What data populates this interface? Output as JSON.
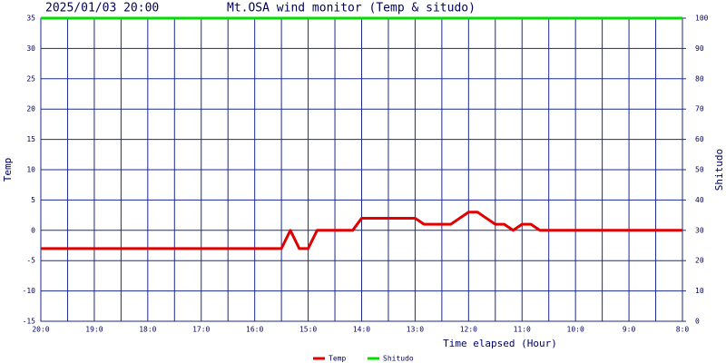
{
  "chart_data": {
    "type": "line",
    "timestamp": "2025/01/03 20:00",
    "title": "Mt.OSA wind monitor (Temp & situdo)",
    "x_label": "Time elapsed (Hour)",
    "y_label": "Temp",
    "y2_label": "Shitudo",
    "xlim": [
      0,
      12
    ],
    "xticks": [
      {
        "value": 0,
        "label": "20:0"
      },
      {
        "value": 1,
        "label": "19:0"
      },
      {
        "value": 2,
        "label": "18:0"
      },
      {
        "value": 3,
        "label": "17:0"
      },
      {
        "value": 4,
        "label": "16:0"
      },
      {
        "value": 5,
        "label": "15:0"
      },
      {
        "value": 6,
        "label": "14:0"
      },
      {
        "value": 7,
        "label": "13:0"
      },
      {
        "value": 8,
        "label": "12:0"
      },
      {
        "value": 9,
        "label": "11:0"
      },
      {
        "value": 10,
        "label": "10:0"
      },
      {
        "value": 11,
        "label": "9:0"
      },
      {
        "value": 12,
        "label": "8:0"
      }
    ],
    "ylim": [
      -15,
      35
    ],
    "yticks": [
      -15,
      -10,
      -5,
      0,
      5,
      10,
      15,
      20,
      25,
      30,
      35
    ],
    "y2lim": [
      0,
      100
    ],
    "y2ticks": [
      0,
      10,
      20,
      30,
      40,
      50,
      60,
      70,
      80,
      90,
      100
    ],
    "grid": true,
    "series": [
      {
        "name": "Temp",
        "color": "#e00000",
        "x": [
          0,
          4.5,
          4.667,
          4.833,
          5,
          5.167,
          5.833,
          6,
          7,
          7.167,
          7.667,
          7.833,
          8,
          8.167,
          8.333,
          8.5,
          8.667,
          8.833,
          9,
          9.167,
          9.333,
          12
        ],
        "values": [
          -3,
          -3,
          0,
          -3,
          -3,
          0,
          0,
          2,
          2,
          1,
          1,
          2,
          3,
          3,
          2,
          1,
          1,
          0,
          1,
          1,
          0,
          0
        ]
      },
      {
        "name": "Shitudo",
        "color": "#00e000",
        "axis": "y2",
        "x": [
          0,
          12
        ],
        "values": [
          100,
          100
        ]
      }
    ]
  }
}
